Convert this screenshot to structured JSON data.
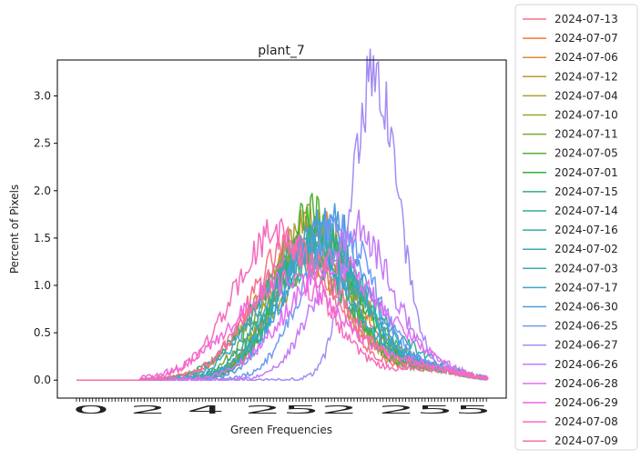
{
  "chart_data": {
    "type": "line",
    "title": "plant_7",
    "xlabel": "Green Frequencies",
    "ylabel": "Percent of Pixels",
    "xlim": [
      0,
      255
    ],
    "ylim": [
      -0.19,
      3.38
    ],
    "yticks": [
      0.0,
      0.5,
      1.0,
      1.5,
      2.0,
      2.5,
      3.0
    ],
    "ytick_labels": [
      "0.0",
      "0.5",
      "1.0",
      "1.5",
      "2.0",
      "2.5",
      "3.0"
    ],
    "x_tick_every": 2,
    "x_tick_labels_visible": [
      "0",
      "2",
      "4",
      "252",
      "255"
    ],
    "legend_position": "outside-right",
    "grid": false,
    "series": [
      {
        "name": "2024-07-13",
        "color": "#f77189",
        "peak_x": 135,
        "peak_y": 1.45,
        "width": 26
      },
      {
        "name": "2024-07-07",
        "color": "#f37932",
        "peak_x": 148,
        "peak_y": 1.45,
        "width": 25
      },
      {
        "name": "2024-07-06",
        "color": "#dc8932",
        "peak_x": 150,
        "peak_y": 1.62,
        "width": 24
      },
      {
        "name": "2024-07-12",
        "color": "#c39532",
        "peak_x": 138,
        "peak_y": 1.3,
        "width": 28
      },
      {
        "name": "2024-07-04",
        "color": "#ae9d31",
        "peak_x": 145,
        "peak_y": 1.7,
        "width": 23
      },
      {
        "name": "2024-07-10",
        "color": "#97a431",
        "peak_x": 152,
        "peak_y": 1.35,
        "width": 26
      },
      {
        "name": "2024-07-11",
        "color": "#77ab31",
        "peak_x": 142,
        "peak_y": 1.5,
        "width": 25
      },
      {
        "name": "2024-07-05",
        "color": "#50b131",
        "peak_x": 146,
        "peak_y": 1.75,
        "width": 22
      },
      {
        "name": "2024-07-01",
        "color": "#33b03b",
        "peak_x": 150,
        "peak_y": 1.6,
        "width": 24
      },
      {
        "name": "2024-07-15",
        "color": "#34ae77",
        "peak_x": 140,
        "peak_y": 1.3,
        "width": 29
      },
      {
        "name": "2024-07-14",
        "color": "#35ac92",
        "peak_x": 148,
        "peak_y": 1.45,
        "width": 27
      },
      {
        "name": "2024-07-16",
        "color": "#36ada4",
        "peak_x": 154,
        "peak_y": 1.25,
        "width": 30
      },
      {
        "name": "2024-07-02",
        "color": "#37abb4",
        "peak_x": 152,
        "peak_y": 1.55,
        "width": 25
      },
      {
        "name": "2024-07-03",
        "color": "#38aac5",
        "peak_x": 150,
        "peak_y": 1.5,
        "width": 26
      },
      {
        "name": "2024-07-17",
        "color": "#3ba3d0",
        "peak_x": 143,
        "peak_y": 1.4,
        "width": 28
      },
      {
        "name": "2024-06-30",
        "color": "#4e9bdf",
        "peak_x": 155,
        "peak_y": 1.7,
        "width": 24
      },
      {
        "name": "2024-06-25",
        "color": "#6e9af4",
        "peak_x": 162,
        "peak_y": 1.6,
        "width": 22
      },
      {
        "name": "2024-06-27",
        "color": "#a48cf4",
        "peak_x": 185,
        "peak_y": 3.23,
        "width": 14
      },
      {
        "name": "2024-06-26",
        "color": "#c47bf4",
        "peak_x": 172,
        "peak_y": 1.6,
        "width": 22
      },
      {
        "name": "2024-06-28",
        "color": "#e16ef4",
        "peak_x": 160,
        "peak_y": 1.2,
        "width": 30
      },
      {
        "name": "2024-06-29",
        "color": "#f267df",
        "peak_x": 132,
        "peak_y": 1.05,
        "width": 34
      },
      {
        "name": "2024-07-08",
        "color": "#f56bbd",
        "peak_x": 125,
        "peak_y": 1.55,
        "width": 27
      },
      {
        "name": "2024-07-09",
        "color": "#f66fa3",
        "peak_x": 138,
        "peak_y": 1.35,
        "width": 28
      }
    ]
  }
}
